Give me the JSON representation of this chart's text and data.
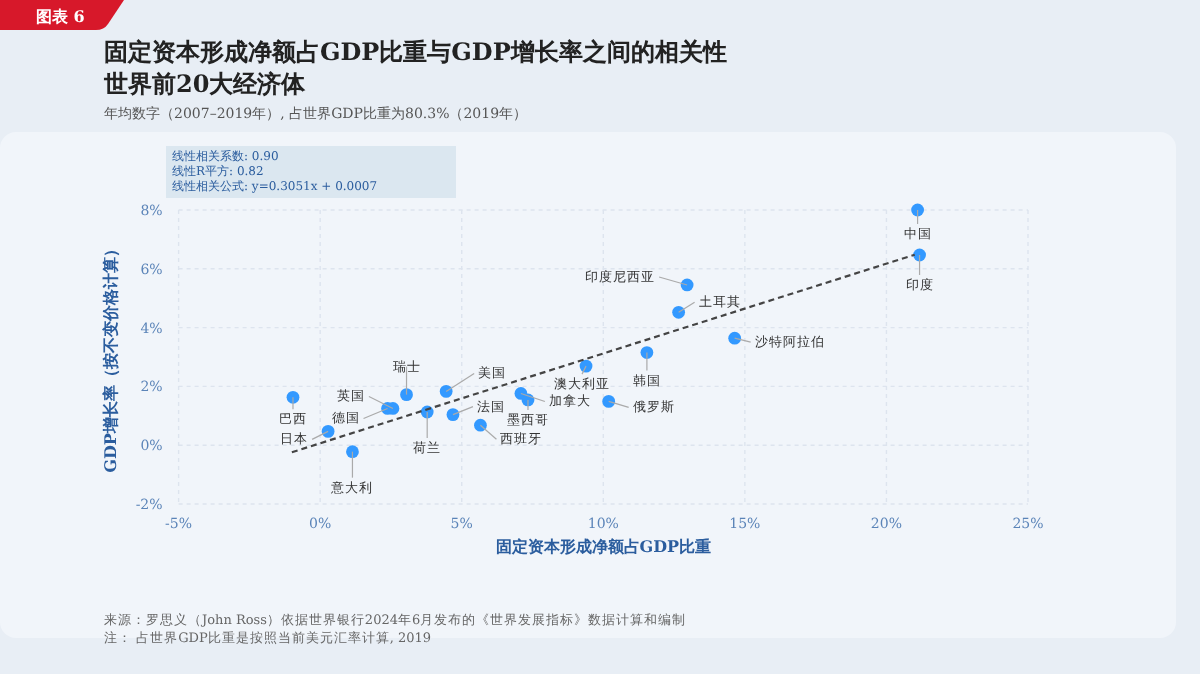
{
  "chart_data": {
    "type": "scatter",
    "title": "固定资本形成净额占GDP比重与GDP增长率之间的相关性",
    "subtitle": "世界前20大经济体",
    "xlabel": "固定资本形成净额占GDP比重",
    "ylabel": "GDP增长率（按不变价格计算）",
    "annotations": [
      "图表 6",
      "年均数字（2007–2019年）, 占世界GDP比重为80.3%（2019年）",
      "线性相关系数: 0.90",
      "线性R平方: 0.82",
      "线性相关公式: y=0.3051x + 0.0007",
      "来源：罗思义（John Ross）依据世界银行2024年6月发布的《世界发展指标》数据计算和编制",
      "注：    占世界GDP比重是按照当前美元汇率计算, 2019",
      {
        "text": "巴西",
        "x": -0.96,
        "y": 1.63
      },
      {
        "text": "日本",
        "x": 0.28,
        "y": 0.47
      },
      {
        "text": "意大利",
        "x": 1.14,
        "y": -0.22
      },
      {
        "text": "德国",
        "x": 2.38,
        "y": 1.25
      },
      {
        "text": "英国",
        "x": 2.57,
        "y": 1.25
      },
      {
        "text": "瑞士",
        "x": 3.05,
        "y": 1.72
      },
      {
        "text": "荷兰",
        "x": 3.78,
        "y": 1.13
      },
      {
        "text": "美国",
        "x": 4.45,
        "y": 1.83
      },
      {
        "text": "法国",
        "x": 4.69,
        "y": 1.04
      },
      {
        "text": "西班牙",
        "x": 5.66,
        "y": 0.68
      },
      {
        "text": "加拿大",
        "x": 7.09,
        "y": 1.76
      },
      {
        "text": "墨西哥",
        "x": 7.34,
        "y": 1.54
      },
      {
        "text": "澳大利亚",
        "x": 9.39,
        "y": 2.69
      },
      {
        "text": "俄罗斯",
        "x": 10.19,
        "y": 1.49
      },
      {
        "text": "韩国",
        "x": 11.54,
        "y": 3.15
      },
      {
        "text": "土耳其",
        "x": 12.66,
        "y": 4.52
      },
      {
        "text": "印度尼西亚",
        "x": 12.96,
        "y": 5.45
      },
      {
        "text": "沙特阿拉伯",
        "x": 14.64,
        "y": 3.64
      },
      {
        "text": "中国",
        "x": 21.1,
        "y": 8.0
      },
      {
        "text": "印度",
        "x": 21.17,
        "y": 6.47
      }
    ],
    "series": [
      {
        "marker": "circle",
        "color": "#3399ff",
        "x": [
          -0.96,
          0.28,
          1.14,
          2.38,
          2.57,
          3.05,
          3.78,
          4.45,
          4.69,
          5.66,
          7.09,
          7.34,
          9.39,
          10.19,
          11.54,
          12.66,
          12.96,
          14.64,
          21.1,
          21.17
        ],
        "values": [
          1.63,
          0.47,
          -0.22,
          1.25,
          1.25,
          1.72,
          1.13,
          1.83,
          1.04,
          0.68,
          1.76,
          1.54,
          2.69,
          1.49,
          3.15,
          4.52,
          5.45,
          3.64,
          8.0,
          6.47
        ]
      },
      {
        "type": "line",
        "color": "#444444",
        "line_style": "dashed",
        "x": [
          -1,
          21
        ],
        "values": [
          -0.24,
          6.48
        ]
      }
    ],
    "xlim": [
      -5,
      25
    ],
    "ylim": [
      -2,
      8
    ],
    "xticks": [
      {
        "value": -5,
        "label": "-5%"
      },
      {
        "value": 0,
        "label": "0%"
      },
      {
        "value": 5,
        "label": "5%"
      },
      {
        "value": 10,
        "label": "10%"
      },
      {
        "value": 15,
        "label": "15%"
      },
      {
        "value": 20,
        "label": "20%"
      },
      {
        "value": 25,
        "label": "25%"
      }
    ],
    "yticks": [
      {
        "value": -2,
        "label": "-2%"
      },
      {
        "value": 0,
        "label": "0%"
      },
      {
        "value": 2,
        "label": "2%"
      },
      {
        "value": 4,
        "label": "4%"
      },
      {
        "value": 6,
        "label": "6%"
      },
      {
        "value": 8,
        "label": "8%"
      }
    ],
    "grid": true
  }
}
